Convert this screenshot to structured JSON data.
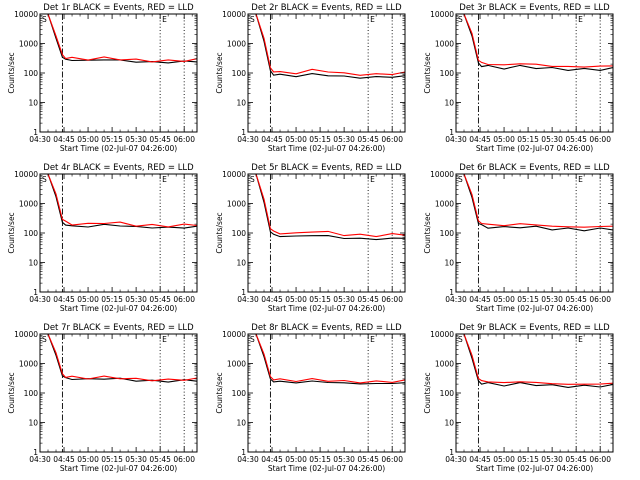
{
  "figure": {
    "xlabel": "Start Time (02-Jul-07 04:26:00)",
    "ylabel": "Counts/sec",
    "x_ticks": [
      "04:30",
      "04:45",
      "05:00",
      "05:15",
      "05:30",
      "05:45",
      "06:00"
    ],
    "y_ticks": [
      "1",
      "10",
      "100",
      "1000",
      "10000"
    ],
    "marker_start": "S",
    "marker_end": "E"
  },
  "chart_data": [
    {
      "type": "line",
      "title": "Det 1r BLACK = Events, RED = LLD",
      "xlabel": "Start Time (02-Jul-07 04:26:00)",
      "ylabel": "Counts/sec",
      "y_scale": "log",
      "ylim": [
        1,
        10000
      ],
      "xlim": [
        "04:30",
        "06:08"
      ],
      "x": [
        "04:30",
        "04:35",
        "04:40",
        "04:44",
        "04:46",
        "04:50",
        "05:00",
        "05:10",
        "05:20",
        "05:30",
        "05:40",
        "05:50",
        "06:00",
        "06:08"
      ],
      "series": [
        {
          "name": "Events",
          "color": "#000000",
          "values": [
            10000,
            10000,
            1500,
            340,
            290,
            270,
            265,
            285,
            270,
            240,
            235,
            230,
            245,
            250
          ]
        },
        {
          "name": "LLD",
          "color": "#ff0000",
          "values": [
            10000,
            10000,
            1800,
            420,
            340,
            310,
            300,
            320,
            305,
            270,
            260,
            255,
            270,
            280
          ]
        }
      ],
      "vlines": [
        {
          "x": "04:44",
          "style": "dashdot"
        },
        {
          "x": "05:45",
          "style": "dotted"
        },
        {
          "x": "06:00",
          "style": "dotted"
        }
      ]
    },
    {
      "type": "line",
      "title": "Det 2r BLACK = Events, RED = LLD",
      "xlabel": "Start Time (02-Jul-07 04:26:00)",
      "ylabel": "Counts/sec",
      "y_scale": "log",
      "ylim": [
        1,
        10000
      ],
      "xlim": [
        "04:30",
        "06:08"
      ],
      "x": [
        "04:30",
        "04:35",
        "04:40",
        "04:44",
        "04:46",
        "04:50",
        "05:00",
        "05:10",
        "05:20",
        "05:30",
        "05:40",
        "05:50",
        "06:00",
        "06:08"
      ],
      "series": [
        {
          "name": "Events",
          "color": "#000000",
          "values": [
            10000,
            10000,
            1200,
            120,
            90,
            85,
            80,
            90,
            85,
            75,
            70,
            72,
            75,
            78
          ]
        },
        {
          "name": "LLD",
          "color": "#ff0000",
          "values": [
            10000,
            10000,
            1500,
            150,
            115,
            105,
            100,
            125,
            115,
            95,
            90,
            88,
            95,
            100
          ]
        }
      ],
      "vlines": [
        {
          "x": "04:44",
          "style": "dashdot"
        },
        {
          "x": "05:45",
          "style": "dotted"
        },
        {
          "x": "06:00",
          "style": "dotted"
        }
      ]
    },
    {
      "type": "line",
      "title": "Det 3r BLACK = Events, RED = LLD",
      "xlabel": "Start Time (02-Jul-07 04:26:00)",
      "ylabel": "Counts/sec",
      "y_scale": "log",
      "ylim": [
        1,
        10000
      ],
      "xlim": [
        "04:30",
        "06:08"
      ],
      "x": [
        "04:30",
        "04:35",
        "04:40",
        "04:44",
        "04:46",
        "04:50",
        "05:00",
        "05:10",
        "05:20",
        "05:30",
        "05:40",
        "05:50",
        "06:00",
        "06:08"
      ],
      "series": [
        {
          "name": "Events",
          "color": "#000000",
          "values": [
            10000,
            10000,
            1800,
            220,
            180,
            165,
            150,
            165,
            155,
            140,
            135,
            130,
            135,
            140
          ]
        },
        {
          "name": "LLD",
          "color": "#ff0000",
          "values": [
            10000,
            10000,
            2200,
            270,
            220,
            200,
            185,
            210,
            195,
            170,
            165,
            160,
            170,
            175
          ]
        }
      ],
      "vlines": [
        {
          "x": "04:44",
          "style": "dashdot"
        },
        {
          "x": "05:45",
          "style": "dotted"
        },
        {
          "x": "06:00",
          "style": "dotted"
        }
      ]
    },
    {
      "type": "line",
      "title": "Det 4r BLACK = Events, RED = LLD",
      "xlabel": "Start Time (02-Jul-07 04:26:00)",
      "ylabel": "Counts/sec",
      "y_scale": "log",
      "ylim": [
        1,
        10000
      ],
      "xlim": [
        "04:30",
        "06:08"
      ],
      "x": [
        "04:30",
        "04:35",
        "04:40",
        "04:44",
        "04:46",
        "04:50",
        "05:00",
        "05:10",
        "05:20",
        "05:30",
        "05:40",
        "05:50",
        "06:00",
        "06:08"
      ],
      "series": [
        {
          "name": "Events",
          "color": "#000000",
          "values": [
            10000,
            10000,
            1700,
            230,
            190,
            170,
            165,
            190,
            180,
            160,
            155,
            150,
            155,
            160
          ]
        },
        {
          "name": "LLD",
          "color": "#ff0000",
          "values": [
            10000,
            10000,
            2100,
            290,
            230,
            205,
            195,
            230,
            215,
            185,
            180,
            175,
            185,
            195
          ]
        }
      ],
      "vlines": [
        {
          "x": "04:44",
          "style": "dashdot"
        },
        {
          "x": "05:45",
          "style": "dotted"
        },
        {
          "x": "06:00",
          "style": "dotted"
        }
      ]
    },
    {
      "type": "line",
      "title": "Det 5r BLACK = Events, RED = LLD",
      "xlabel": "Start Time (02-Jul-07 04:26:00)",
      "ylabel": "Counts/sec",
      "y_scale": "log",
      "ylim": [
        1,
        10000
      ],
      "xlim": [
        "04:30",
        "06:08"
      ],
      "x": [
        "04:30",
        "04:35",
        "04:40",
        "04:44",
        "04:46",
        "04:50",
        "05:00",
        "05:10",
        "05:20",
        "05:30",
        "05:40",
        "05:50",
        "06:00",
        "06:08"
      ],
      "series": [
        {
          "name": "Events",
          "color": "#000000",
          "values": [
            10000,
            10000,
            1100,
            110,
            85,
            80,
            75,
            85,
            78,
            68,
            64,
            62,
            65,
            68
          ]
        },
        {
          "name": "LLD",
          "color": "#ff0000",
          "values": [
            10000,
            10000,
            1400,
            140,
            110,
            100,
            95,
            115,
            105,
            88,
            84,
            82,
            88,
            92
          ]
        }
      ],
      "vlines": [
        {
          "x": "04:44",
          "style": "dashdot"
        },
        {
          "x": "05:45",
          "style": "dotted"
        },
        {
          "x": "06:00",
          "style": "dotted"
        }
      ]
    },
    {
      "type": "line",
      "title": "Det 6r BLACK = Events, RED = LLD",
      "xlabel": "Start Time (02-Jul-07 04:26:00)",
      "ylabel": "Counts/sec",
      "y_scale": "log",
      "ylim": [
        1,
        10000
      ],
      "xlim": [
        "04:30",
        "06:08"
      ],
      "x": [
        "04:30",
        "04:35",
        "04:40",
        "04:44",
        "04:46",
        "04:50",
        "05:00",
        "05:10",
        "05:20",
        "05:30",
        "05:40",
        "05:50",
        "06:00",
        "06:08"
      ],
      "series": [
        {
          "name": "Events",
          "color": "#000000",
          "values": [
            10000,
            10000,
            1600,
            210,
            175,
            160,
            150,
            165,
            155,
            140,
            135,
            130,
            135,
            140
          ]
        },
        {
          "name": "LLD",
          "color": "#ff0000",
          "values": [
            10000,
            10000,
            2000,
            260,
            215,
            195,
            180,
            205,
            190,
            170,
            162,
            158,
            165,
            172
          ]
        }
      ],
      "vlines": [
        {
          "x": "04:44",
          "style": "dashdot"
        },
        {
          "x": "05:45",
          "style": "dotted"
        },
        {
          "x": "06:00",
          "style": "dotted"
        }
      ]
    },
    {
      "type": "line",
      "title": "Det 7r BLACK = Events, RED = LLD",
      "xlabel": "Start Time (02-Jul-07 04:26:00)",
      "ylabel": "Counts/sec",
      "y_scale": "log",
      "ylim": [
        1,
        10000
      ],
      "xlim": [
        "04:30",
        "06:08"
      ],
      "x": [
        "04:30",
        "04:35",
        "04:40",
        "04:44",
        "04:46",
        "04:50",
        "05:00",
        "05:10",
        "05:20",
        "05:30",
        "05:40",
        "05:50",
        "06:00",
        "06:08"
      ],
      "series": [
        {
          "name": "Events",
          "color": "#000000",
          "values": [
            10000,
            10000,
            1900,
            380,
            320,
            300,
            290,
            310,
            300,
            265,
            255,
            250,
            265,
            270
          ]
        },
        {
          "name": "LLD",
          "color": "#ff0000",
          "values": [
            10000,
            10000,
            2300,
            450,
            370,
            340,
            325,
            345,
            330,
            290,
            280,
            275,
            290,
            300
          ]
        }
      ],
      "vlines": [
        {
          "x": "04:44",
          "style": "dashdot"
        },
        {
          "x": "05:45",
          "style": "dotted"
        },
        {
          "x": "06:00",
          "style": "dotted"
        }
      ]
    },
    {
      "type": "line",
      "title": "Det 8r BLACK = Events, RED = LLD",
      "xlabel": "Start Time (02-Jul-07 04:26:00)",
      "ylabel": "Counts/sec",
      "y_scale": "log",
      "ylim": [
        1,
        10000
      ],
      "xlim": [
        "04:30",
        "06:08"
      ],
      "x": [
        "04:30",
        "04:35",
        "04:40",
        "04:44",
        "04:46",
        "04:50",
        "05:00",
        "05:10",
        "05:20",
        "05:30",
        "05:40",
        "05:50",
        "06:00",
        "06:08"
      ],
      "series": [
        {
          "name": "Events",
          "color": "#000000",
          "values": [
            10000,
            10000,
            1700,
            300,
            250,
            240,
            230,
            245,
            235,
            215,
            210,
            205,
            215,
            220
          ]
        },
        {
          "name": "LLD",
          "color": "#ff0000",
          "values": [
            10000,
            10000,
            2100,
            360,
            300,
            280,
            265,
            285,
            270,
            245,
            240,
            235,
            250,
            255
          ]
        }
      ],
      "vlines": [
        {
          "x": "04:44",
          "style": "dashdot"
        },
        {
          "x": "05:45",
          "style": "dotted"
        },
        {
          "x": "06:00",
          "style": "dotted"
        }
      ]
    },
    {
      "type": "line",
      "title": "Det 9r BLACK = Events, RED = LLD",
      "xlabel": "Start Time (02-Jul-07 04:26:00)",
      "ylabel": "Counts/sec",
      "y_scale": "log",
      "ylim": [
        1,
        10000
      ],
      "xlim": [
        "04:30",
        "06:08"
      ],
      "x": [
        "04:30",
        "04:35",
        "04:40",
        "04:44",
        "04:46",
        "04:50",
        "05:00",
        "05:10",
        "05:20",
        "05:30",
        "05:40",
        "05:50",
        "06:00",
        "06:08"
      ],
      "series": [
        {
          "name": "Events",
          "color": "#000000",
          "values": [
            10000,
            10000,
            1500,
            260,
            220,
            205,
            190,
            205,
            195,
            175,
            170,
            168,
            175,
            180
          ]
        },
        {
          "name": "LLD",
          "color": "#ff0000",
          "values": [
            10000,
            10000,
            1900,
            310,
            260,
            240,
            225,
            240,
            230,
            205,
            200,
            195,
            205,
            210
          ]
        }
      ],
      "vlines": [
        {
          "x": "04:44",
          "style": "dashdot"
        },
        {
          "x": "05:45",
          "style": "dotted"
        },
        {
          "x": "06:00",
          "style": "dotted"
        }
      ]
    }
  ]
}
